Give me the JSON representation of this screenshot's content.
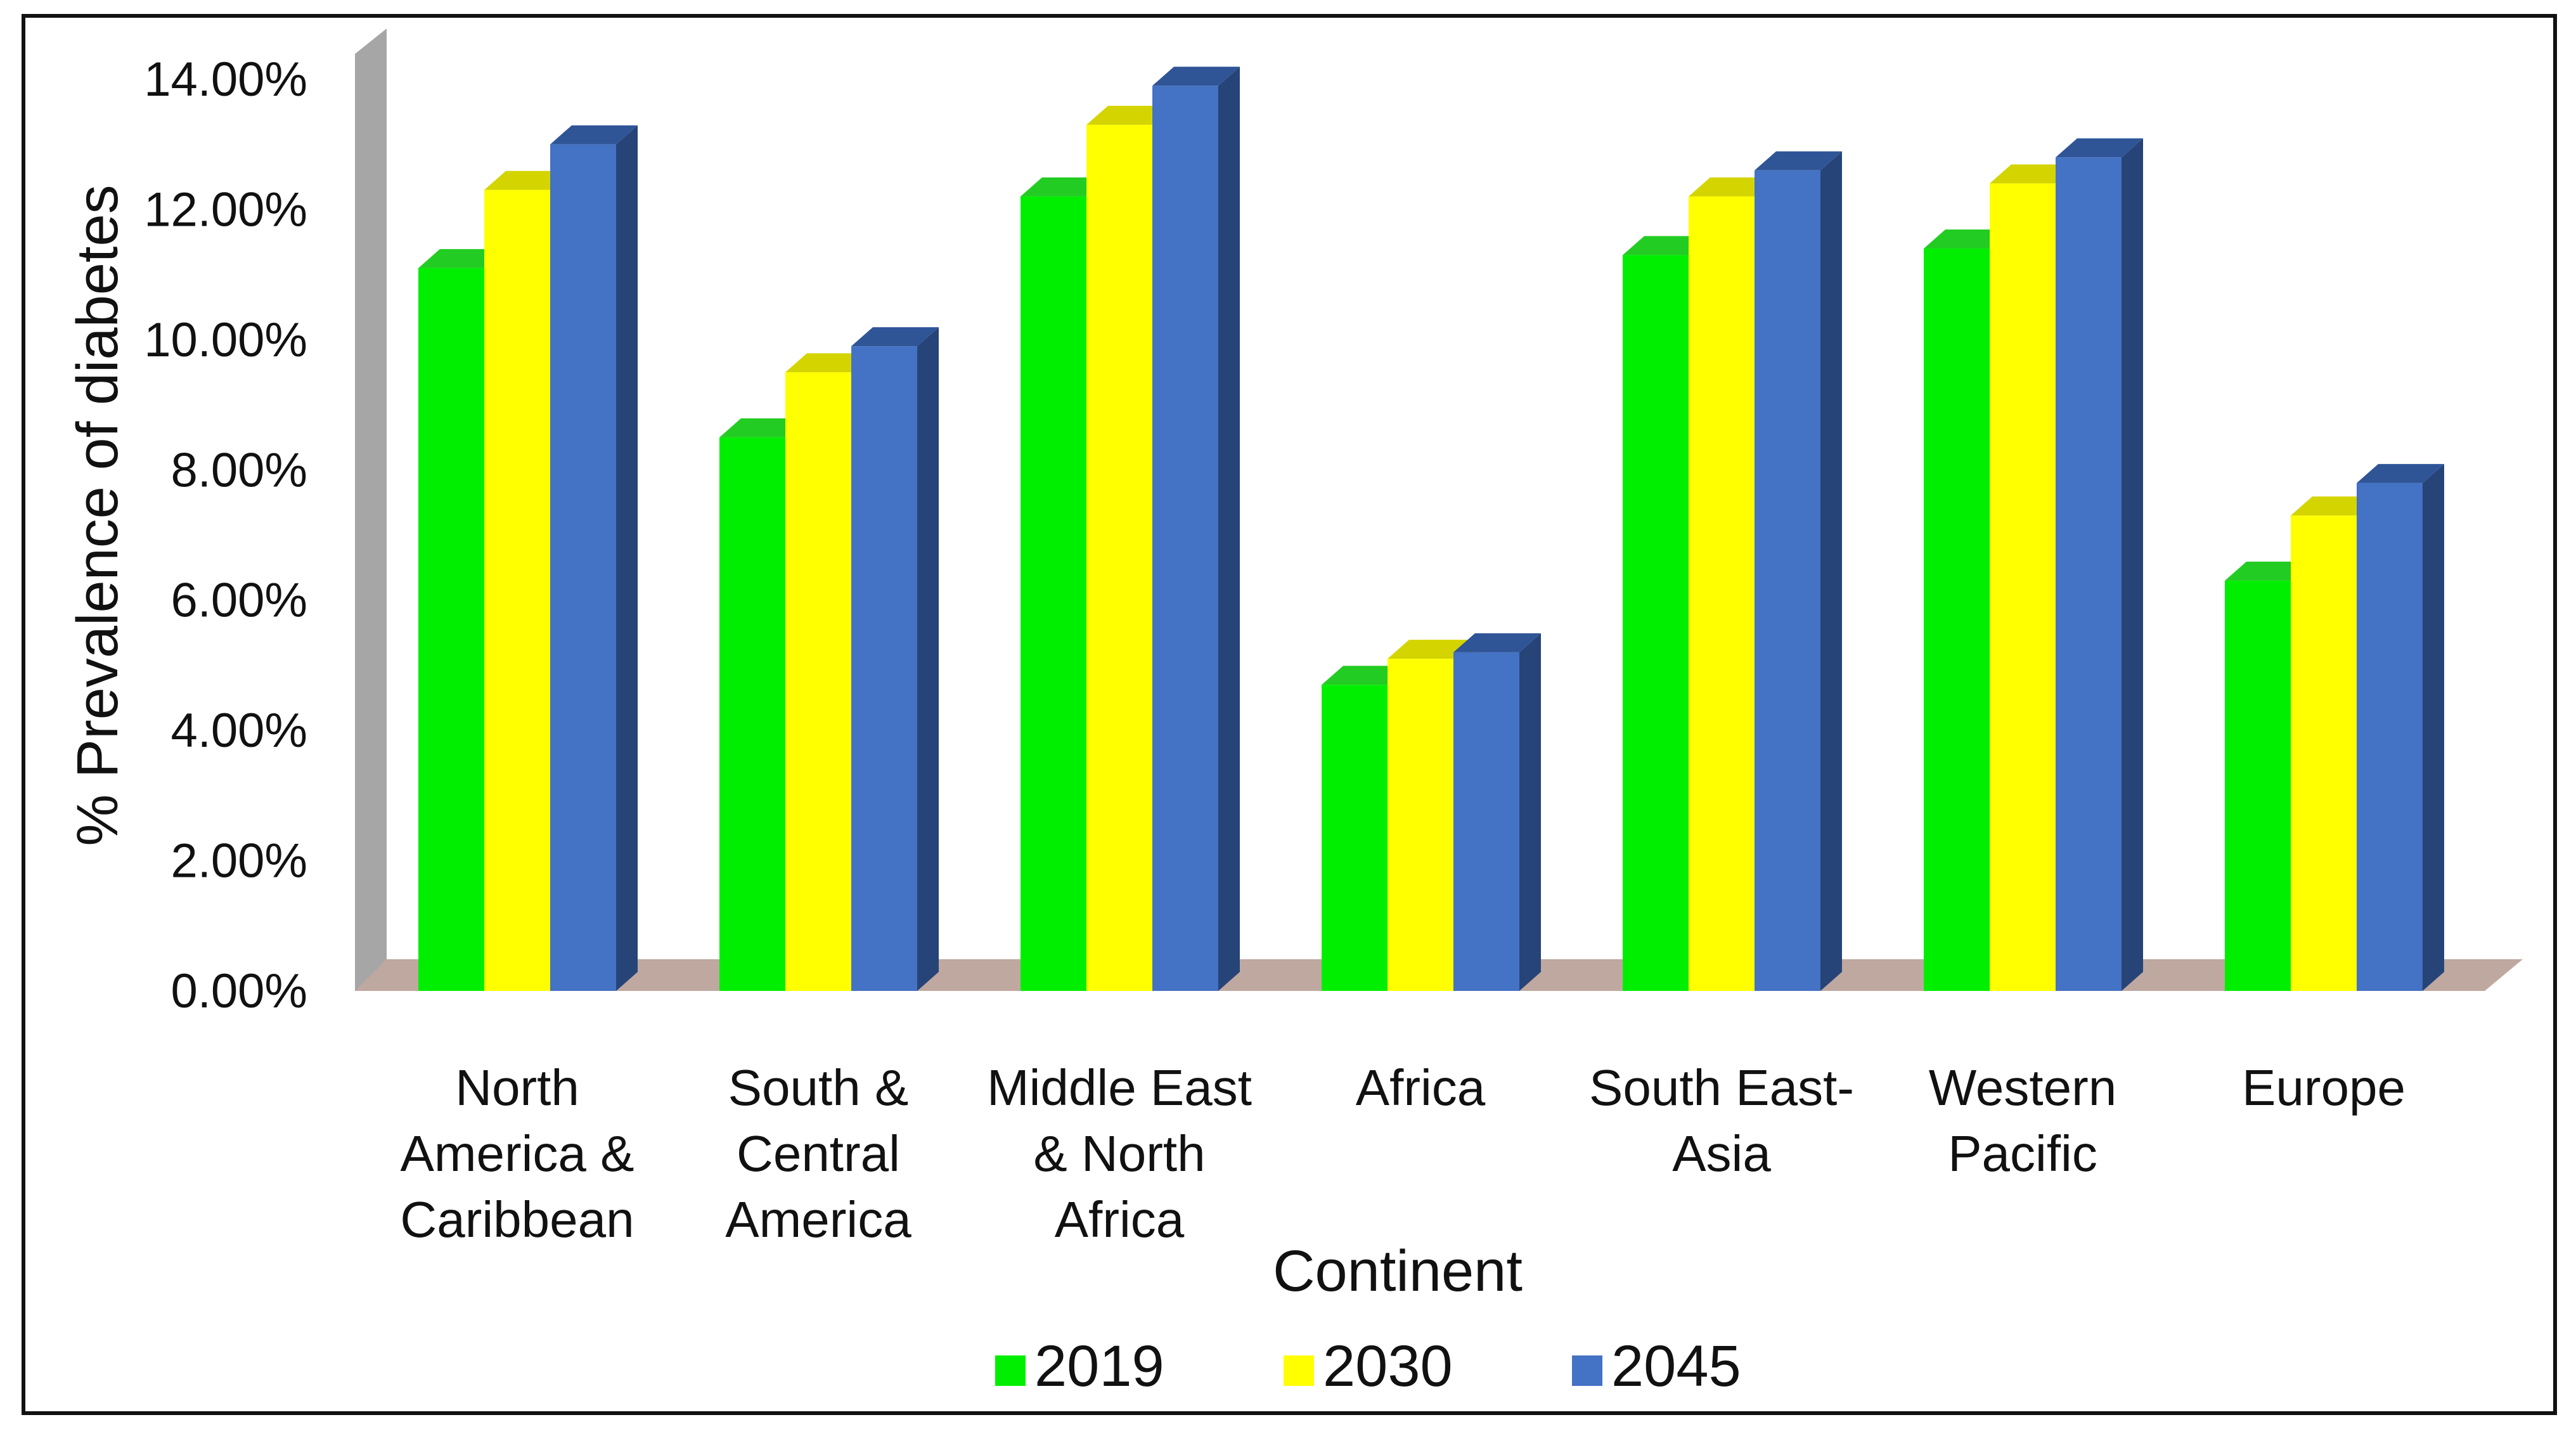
{
  "chart_data": {
    "type": "bar",
    "title": "",
    "xlabel": "Continent",
    "ylabel": "% Prevalence of diabetes",
    "ylim": [
      0,
      14
    ],
    "yticks": [
      "0.00%",
      "2.00%",
      "4.00%",
      "6.00%",
      "8.00%",
      "10.00%",
      "12.00%",
      "14.00%"
    ],
    "categories": [
      [
        "North",
        "America &",
        "Caribbean"
      ],
      [
        "South &",
        "Central",
        "America"
      ],
      [
        "Middle East",
        "& North",
        "Africa"
      ],
      [
        "Africa"
      ],
      [
        "South East-",
        "Asia"
      ],
      [
        "Western",
        "Pacific"
      ],
      [
        "Europe"
      ]
    ],
    "series": [
      {
        "name": "2019",
        "color": "#00EE00",
        "top": "#22CC22",
        "side": "#009900",
        "values": [
          11.1,
          8.5,
          12.2,
          4.7,
          11.3,
          11.4,
          6.3
        ]
      },
      {
        "name": "2030",
        "color": "#FFFF00",
        "top": "#D4D400",
        "side": "#BDBD00",
        "values": [
          12.3,
          9.5,
          13.3,
          5.1,
          12.2,
          12.4,
          7.3
        ]
      },
      {
        "name": "2045",
        "color": "#4472C4",
        "top": "#2F5597",
        "side": "#264478",
        "values": [
          13.0,
          9.9,
          13.9,
          5.2,
          12.6,
          12.8,
          7.8
        ]
      }
    ],
    "legend": {
      "position": "bottom"
    },
    "colors": {
      "wall": "#A6A6A6",
      "floor": "#BFA8A0",
      "text": "#111111"
    }
  }
}
